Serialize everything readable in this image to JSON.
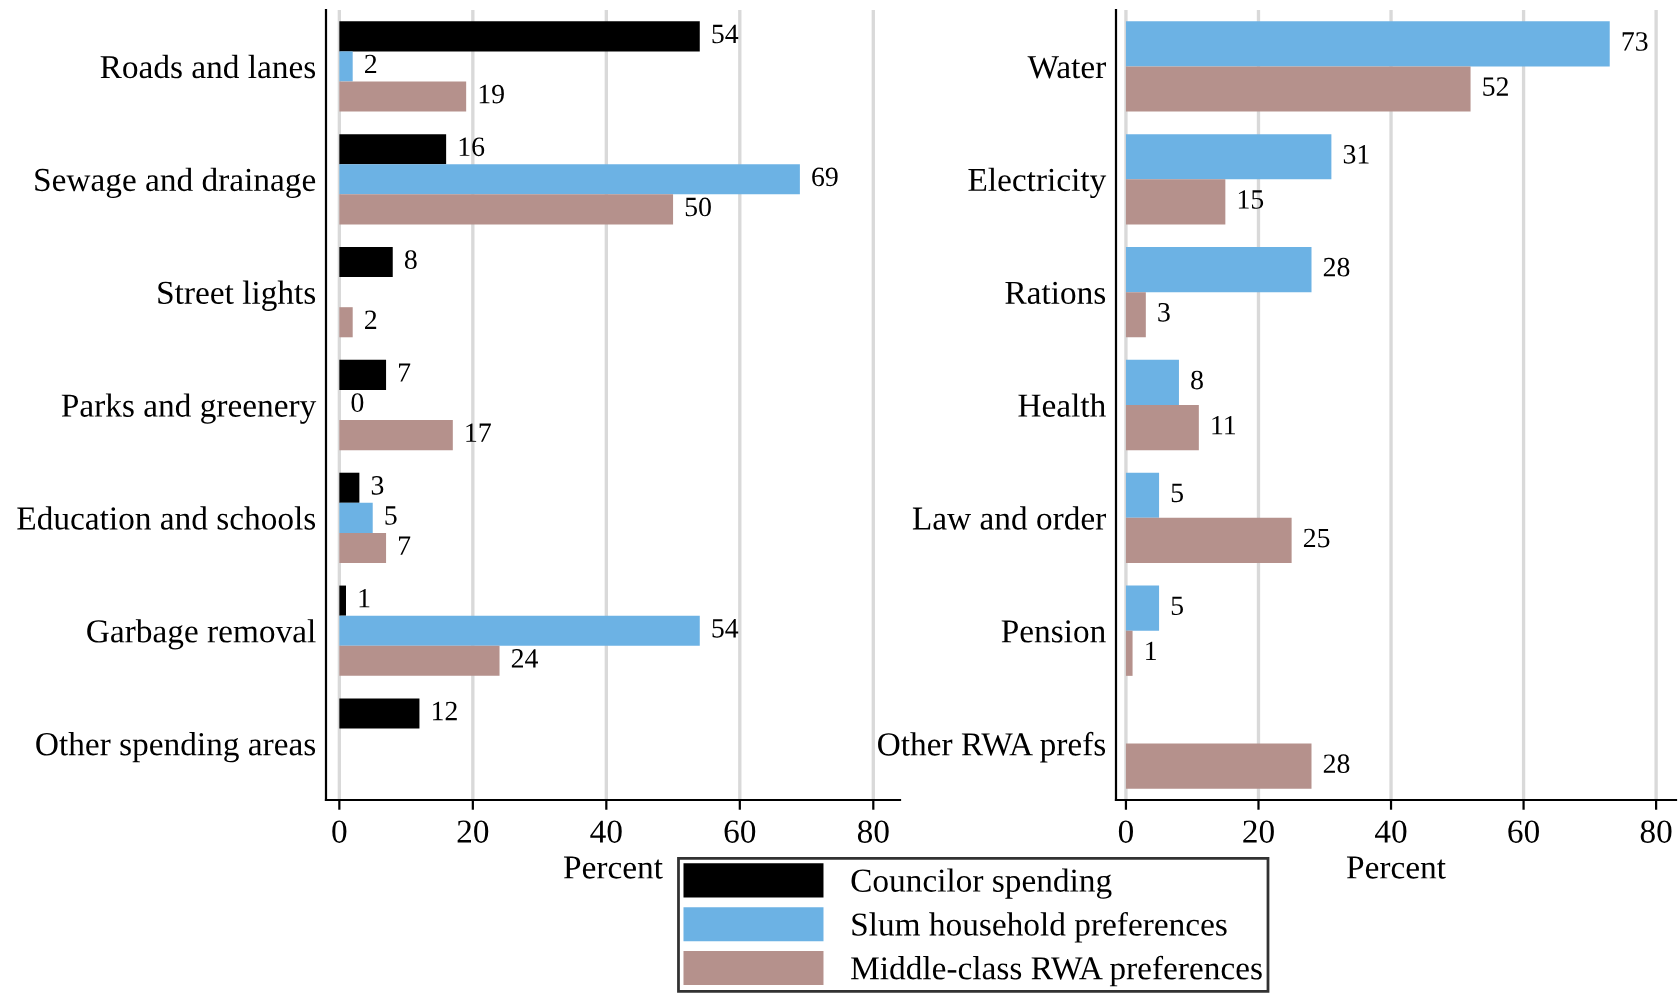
{
  "chart_data": [
    {
      "type": "bar",
      "orientation": "horizontal",
      "xlabel": "Percent",
      "categories": [
        "Roads and lanes",
        "Sewage and drainage",
        "Street lights",
        "Parks and greenery",
        "Education and schools",
        "Garbage removal",
        "Other spending areas"
      ],
      "series": [
        {
          "name": "Councilor spending",
          "color": "#000000",
          "values": [
            54,
            16,
            8,
            7,
            3,
            1,
            12
          ]
        },
        {
          "name": "Slum household preferences",
          "color": "#6cb2e4",
          "values": [
            2,
            69,
            null,
            0,
            5,
            54,
            null
          ]
        },
        {
          "name": "Middle-class RWA preferences",
          "color": "#b5918c",
          "values": [
            19,
            50,
            2,
            17,
            7,
            24,
            null
          ]
        }
      ],
      "xlim": [
        -2,
        84
      ],
      "xticks": [
        0,
        20,
        40,
        60,
        80
      ],
      "grid": "x",
      "data_labels": true,
      "legend": "bottom"
    },
    {
      "type": "bar",
      "orientation": "horizontal",
      "xlabel": "Percent",
      "categories": [
        "Water",
        "Electricity",
        "Rations",
        "Health",
        "Law and order",
        "Pension",
        "Other RWA prefs"
      ],
      "series": [
        {
          "color": "#6cb2e4",
          "values": [
            73,
            31,
            28,
            8,
            5,
            5,
            null
          ]
        },
        {
          "color": "#b5918c",
          "values": [
            52,
            15,
            3,
            11,
            25,
            1,
            28
          ]
        }
      ],
      "xlim": [
        -1.5,
        83
      ],
      "xticks": [
        0,
        20,
        40,
        60,
        80
      ],
      "grid": "x",
      "data_labels": true
    }
  ]
}
